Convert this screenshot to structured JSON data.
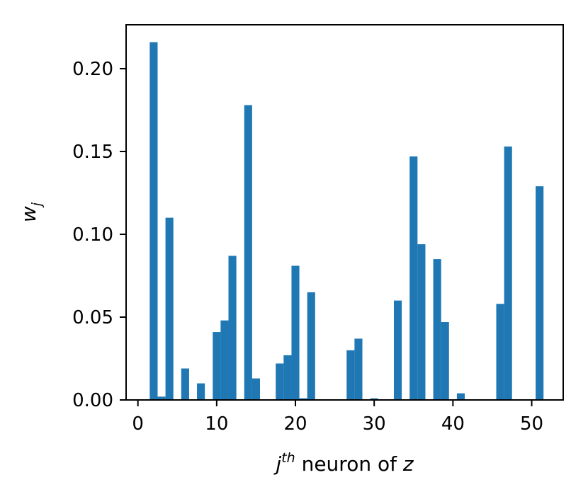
{
  "chart_data": {
    "type": "bar",
    "xlabel_parts": {
      "base": "j",
      "sup": "th",
      "rest": " neuron of ",
      "var": "z"
    },
    "ylabel_parts": {
      "base": "w",
      "sub": "j"
    },
    "xlim": [
      -1.5,
      54
    ],
    "ylim": [
      0,
      0.2265
    ],
    "xticks": [
      0,
      10,
      20,
      30,
      40,
      50
    ],
    "yticks": [
      0.0,
      0.05,
      0.1,
      0.15,
      0.2
    ],
    "ytick_labels": [
      "0.00",
      "0.05",
      "0.10",
      "0.15",
      "0.20"
    ],
    "color": "#1f77b4",
    "x": [
      2,
      3,
      4,
      6,
      8,
      10,
      11,
      12,
      14,
      15,
      18,
      19,
      20,
      21,
      22,
      27,
      28,
      30,
      33,
      35,
      36,
      38,
      39,
      41,
      46,
      47,
      51
    ],
    "values": [
      0.216,
      0.002,
      0.11,
      0.019,
      0.01,
      0.041,
      0.048,
      0.087,
      0.178,
      0.013,
      0.022,
      0.027,
      0.081,
      0.001,
      0.065,
      0.03,
      0.037,
      0.001,
      0.06,
      0.147,
      0.094,
      0.085,
      0.047,
      0.004,
      0.058,
      0.153,
      0.129
    ]
  }
}
